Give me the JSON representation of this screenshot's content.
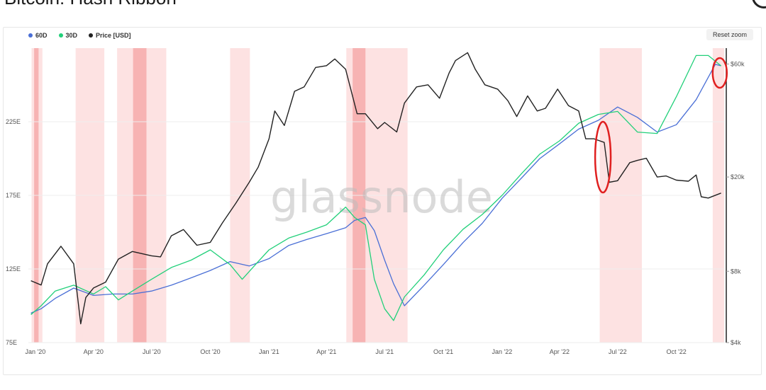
{
  "title": "Bitcoin: Hash Ribbon",
  "reset_zoom_label": "Reset zoom",
  "watermark": "glassnode",
  "colors": {
    "ma60": "#4a6fd6",
    "ma30": "#22d07a",
    "price": "#222222",
    "capitulation_band": "#fde2e2",
    "capitulation_dark": "#f5a8a8",
    "annotation": "#e02020"
  },
  "legend": [
    {
      "label": "60D",
      "color": "#4a6fd6"
    },
    {
      "label": "30D",
      "color": "#22d07a"
    },
    {
      "label": "Price [USD]",
      "color": "#222222"
    }
  ],
  "chart_data": {
    "type": "line",
    "title": "Bitcoin: Hash Ribbon",
    "x_range": [
      "2020-01-01",
      "2022-12-31"
    ],
    "x_ticks": [
      {
        "label": "Jan '20",
        "date": "2020-01-01"
      },
      {
        "label": "Apr '20",
        "date": "2020-04-01"
      },
      {
        "label": "Jul '20",
        "date": "2020-07-01"
      },
      {
        "label": "Oct '20",
        "date": "2020-10-01"
      },
      {
        "label": "Jan '21",
        "date": "2021-01-01"
      },
      {
        "label": "Apr '21",
        "date": "2021-04-01"
      },
      {
        "label": "Jul '21",
        "date": "2021-07-01"
      },
      {
        "label": "Oct '21",
        "date": "2021-10-01"
      },
      {
        "label": "Jan '22",
        "date": "2022-01-01"
      },
      {
        "label": "Apr '22",
        "date": "2022-04-01"
      },
      {
        "label": "Jul '22",
        "date": "2022-07-01"
      },
      {
        "label": "Oct '22",
        "date": "2022-10-01"
      }
    ],
    "y_left": {
      "ticks": [
        "75E",
        "125E",
        "175E",
        "225E"
      ],
      "values": [
        75,
        125,
        175,
        225
      ],
      "range": [
        75,
        275
      ]
    },
    "y_right": {
      "ticks": [
        "$4k",
        "$8k",
        "$20k",
        "$60k"
      ],
      "values": [
        4000,
        8000,
        20000,
        60000
      ],
      "scale": "log",
      "range": [
        4000,
        70000
      ]
    },
    "grid": true,
    "legend_position": "top-left",
    "capitulation_bands": [
      {
        "start": "2019-12-26",
        "end": "2020-01-12"
      },
      {
        "start": "2020-03-04",
        "end": "2020-04-18"
      },
      {
        "start": "2020-05-08",
        "end": "2020-07-24"
      },
      {
        "start": "2020-11-01",
        "end": "2020-12-02"
      },
      {
        "start": "2021-05-02",
        "end": "2021-08-06"
      },
      {
        "start": "2022-06-03",
        "end": "2022-08-08"
      },
      {
        "start": "2022-11-27",
        "end": "2022-12-15"
      }
    ],
    "capitulation_dark_bands": [
      {
        "start": "2019-12-30",
        "end": "2020-01-06"
      },
      {
        "start": "2020-06-02",
        "end": "2020-06-23"
      },
      {
        "start": "2021-05-12",
        "end": "2021-06-01"
      }
    ],
    "series": [
      {
        "name": "60D",
        "axis": "left",
        "x": [
          "2019-12-25",
          "2020-01-10",
          "2020-02-01",
          "2020-03-01",
          "2020-04-01",
          "2020-05-01",
          "2020-06-01",
          "2020-07-01",
          "2020-08-01",
          "2020-09-01",
          "2020-10-01",
          "2020-11-01",
          "2020-12-01",
          "2021-01-01",
          "2021-02-01",
          "2021-03-01",
          "2021-04-01",
          "2021-05-01",
          "2021-05-15",
          "2021-06-01",
          "2021-06-15",
          "2021-07-01",
          "2021-07-15",
          "2021-08-01",
          "2021-09-01",
          "2021-10-01",
          "2021-11-01",
          "2021-12-01",
          "2022-01-01",
          "2022-02-01",
          "2022-03-01",
          "2022-04-01",
          "2022-05-01",
          "2022-06-01",
          "2022-07-01",
          "2022-08-01",
          "2022-09-01",
          "2022-10-01",
          "2022-11-01",
          "2022-12-01",
          "2022-12-10"
        ],
        "y": [
          95,
          98,
          105,
          112,
          107,
          108,
          108,
          110,
          114,
          119,
          124,
          130,
          127,
          132,
          141,
          145,
          149,
          153,
          158,
          160,
          151,
          131,
          115,
          100,
          114,
          128,
          143,
          156,
          173,
          187,
          200,
          210,
          220,
          226,
          235,
          228,
          218,
          223,
          240,
          264,
          263
        ]
      },
      {
        "name": "30D",
        "axis": "left",
        "x": [
          "2019-12-25",
          "2020-01-10",
          "2020-02-01",
          "2020-03-01",
          "2020-04-01",
          "2020-04-20",
          "2020-05-10",
          "2020-06-01",
          "2020-07-01",
          "2020-08-01",
          "2020-09-01",
          "2020-10-01",
          "2020-11-01",
          "2020-11-20",
          "2020-12-15",
          "2021-01-01",
          "2021-02-01",
          "2021-03-01",
          "2021-04-01",
          "2021-05-01",
          "2021-05-15",
          "2021-06-01",
          "2021-06-15",
          "2021-07-01",
          "2021-07-15",
          "2021-08-01",
          "2021-09-01",
          "2021-10-01",
          "2021-11-01",
          "2021-12-01",
          "2022-01-01",
          "2022-02-01",
          "2022-03-01",
          "2022-04-01",
          "2022-05-01",
          "2022-06-01",
          "2022-07-01",
          "2022-08-01",
          "2022-09-01",
          "2022-10-01",
          "2022-11-01",
          "2022-11-20",
          "2022-12-10"
        ],
        "y": [
          94,
          100,
          110,
          114,
          108,
          113,
          104,
          110,
          118,
          126,
          131,
          138,
          128,
          118,
          130,
          138,
          146,
          150,
          155,
          167,
          160,
          155,
          118,
          98,
          90,
          106,
          121,
          138,
          152,
          162,
          175,
          190,
          203,
          212,
          224,
          230,
          232,
          218,
          217,
          242,
          270,
          270,
          263
        ]
      },
      {
        "name": "Price [USD]",
        "axis": "right",
        "x": [
          "2019-12-25",
          "2020-01-10",
          "2020-01-20",
          "2020-02-10",
          "2020-03-01",
          "2020-03-12",
          "2020-03-20",
          "2020-04-01",
          "2020-04-20",
          "2020-05-10",
          "2020-06-01",
          "2020-07-01",
          "2020-07-15",
          "2020-08-01",
          "2020-08-20",
          "2020-09-10",
          "2020-10-01",
          "2020-10-20",
          "2020-11-10",
          "2020-12-01",
          "2020-12-15",
          "2021-01-01",
          "2021-01-10",
          "2021-01-25",
          "2021-02-10",
          "2021-02-25",
          "2021-03-15",
          "2021-04-01",
          "2021-04-14",
          "2021-05-01",
          "2021-05-19",
          "2021-06-01",
          "2021-06-20",
          "2021-07-01",
          "2021-07-20",
          "2021-08-01",
          "2021-08-20",
          "2021-09-07",
          "2021-09-25",
          "2021-10-10",
          "2021-10-20",
          "2021-11-08",
          "2021-11-20",
          "2021-12-05",
          "2021-12-25",
          "2022-01-10",
          "2022-01-24",
          "2022-02-10",
          "2022-02-25",
          "2022-03-10",
          "2022-03-29",
          "2022-04-15",
          "2022-05-01",
          "2022-05-12",
          "2022-05-25",
          "2022-06-10",
          "2022-06-18",
          "2022-07-01",
          "2022-07-20",
          "2022-08-01",
          "2022-08-15",
          "2022-09-01",
          "2022-09-15",
          "2022-10-01",
          "2022-10-20",
          "2022-11-01",
          "2022-11-09",
          "2022-11-20",
          "2022-12-10"
        ],
        "y": [
          7300,
          7000,
          8600,
          10200,
          8600,
          4800,
          6200,
          6800,
          7200,
          9000,
          9700,
          9300,
          9200,
          11300,
          12000,
          10300,
          10600,
          12800,
          15500,
          19000,
          22000,
          29000,
          38000,
          33000,
          46000,
          48000,
          58000,
          59000,
          63000,
          57000,
          37000,
          37000,
          32000,
          34000,
          31000,
          41000,
          48000,
          49000,
          43000,
          55000,
          62000,
          67000,
          57000,
          49000,
          47000,
          42000,
          36000,
          44000,
          38000,
          39000,
          47000,
          40000,
          38000,
          29000,
          29000,
          28000,
          19000,
          19300,
          23000,
          23500,
          24000,
          20000,
          20200,
          19400,
          19200,
          20400,
          16500,
          16300,
          17100
        ]
      }
    ],
    "annotations": [
      {
        "type": "ellipse",
        "date": "2022-06-08",
        "description": "highlight"
      },
      {
        "type": "ellipse",
        "date": "2022-12-08",
        "description": "highlight"
      }
    ]
  }
}
